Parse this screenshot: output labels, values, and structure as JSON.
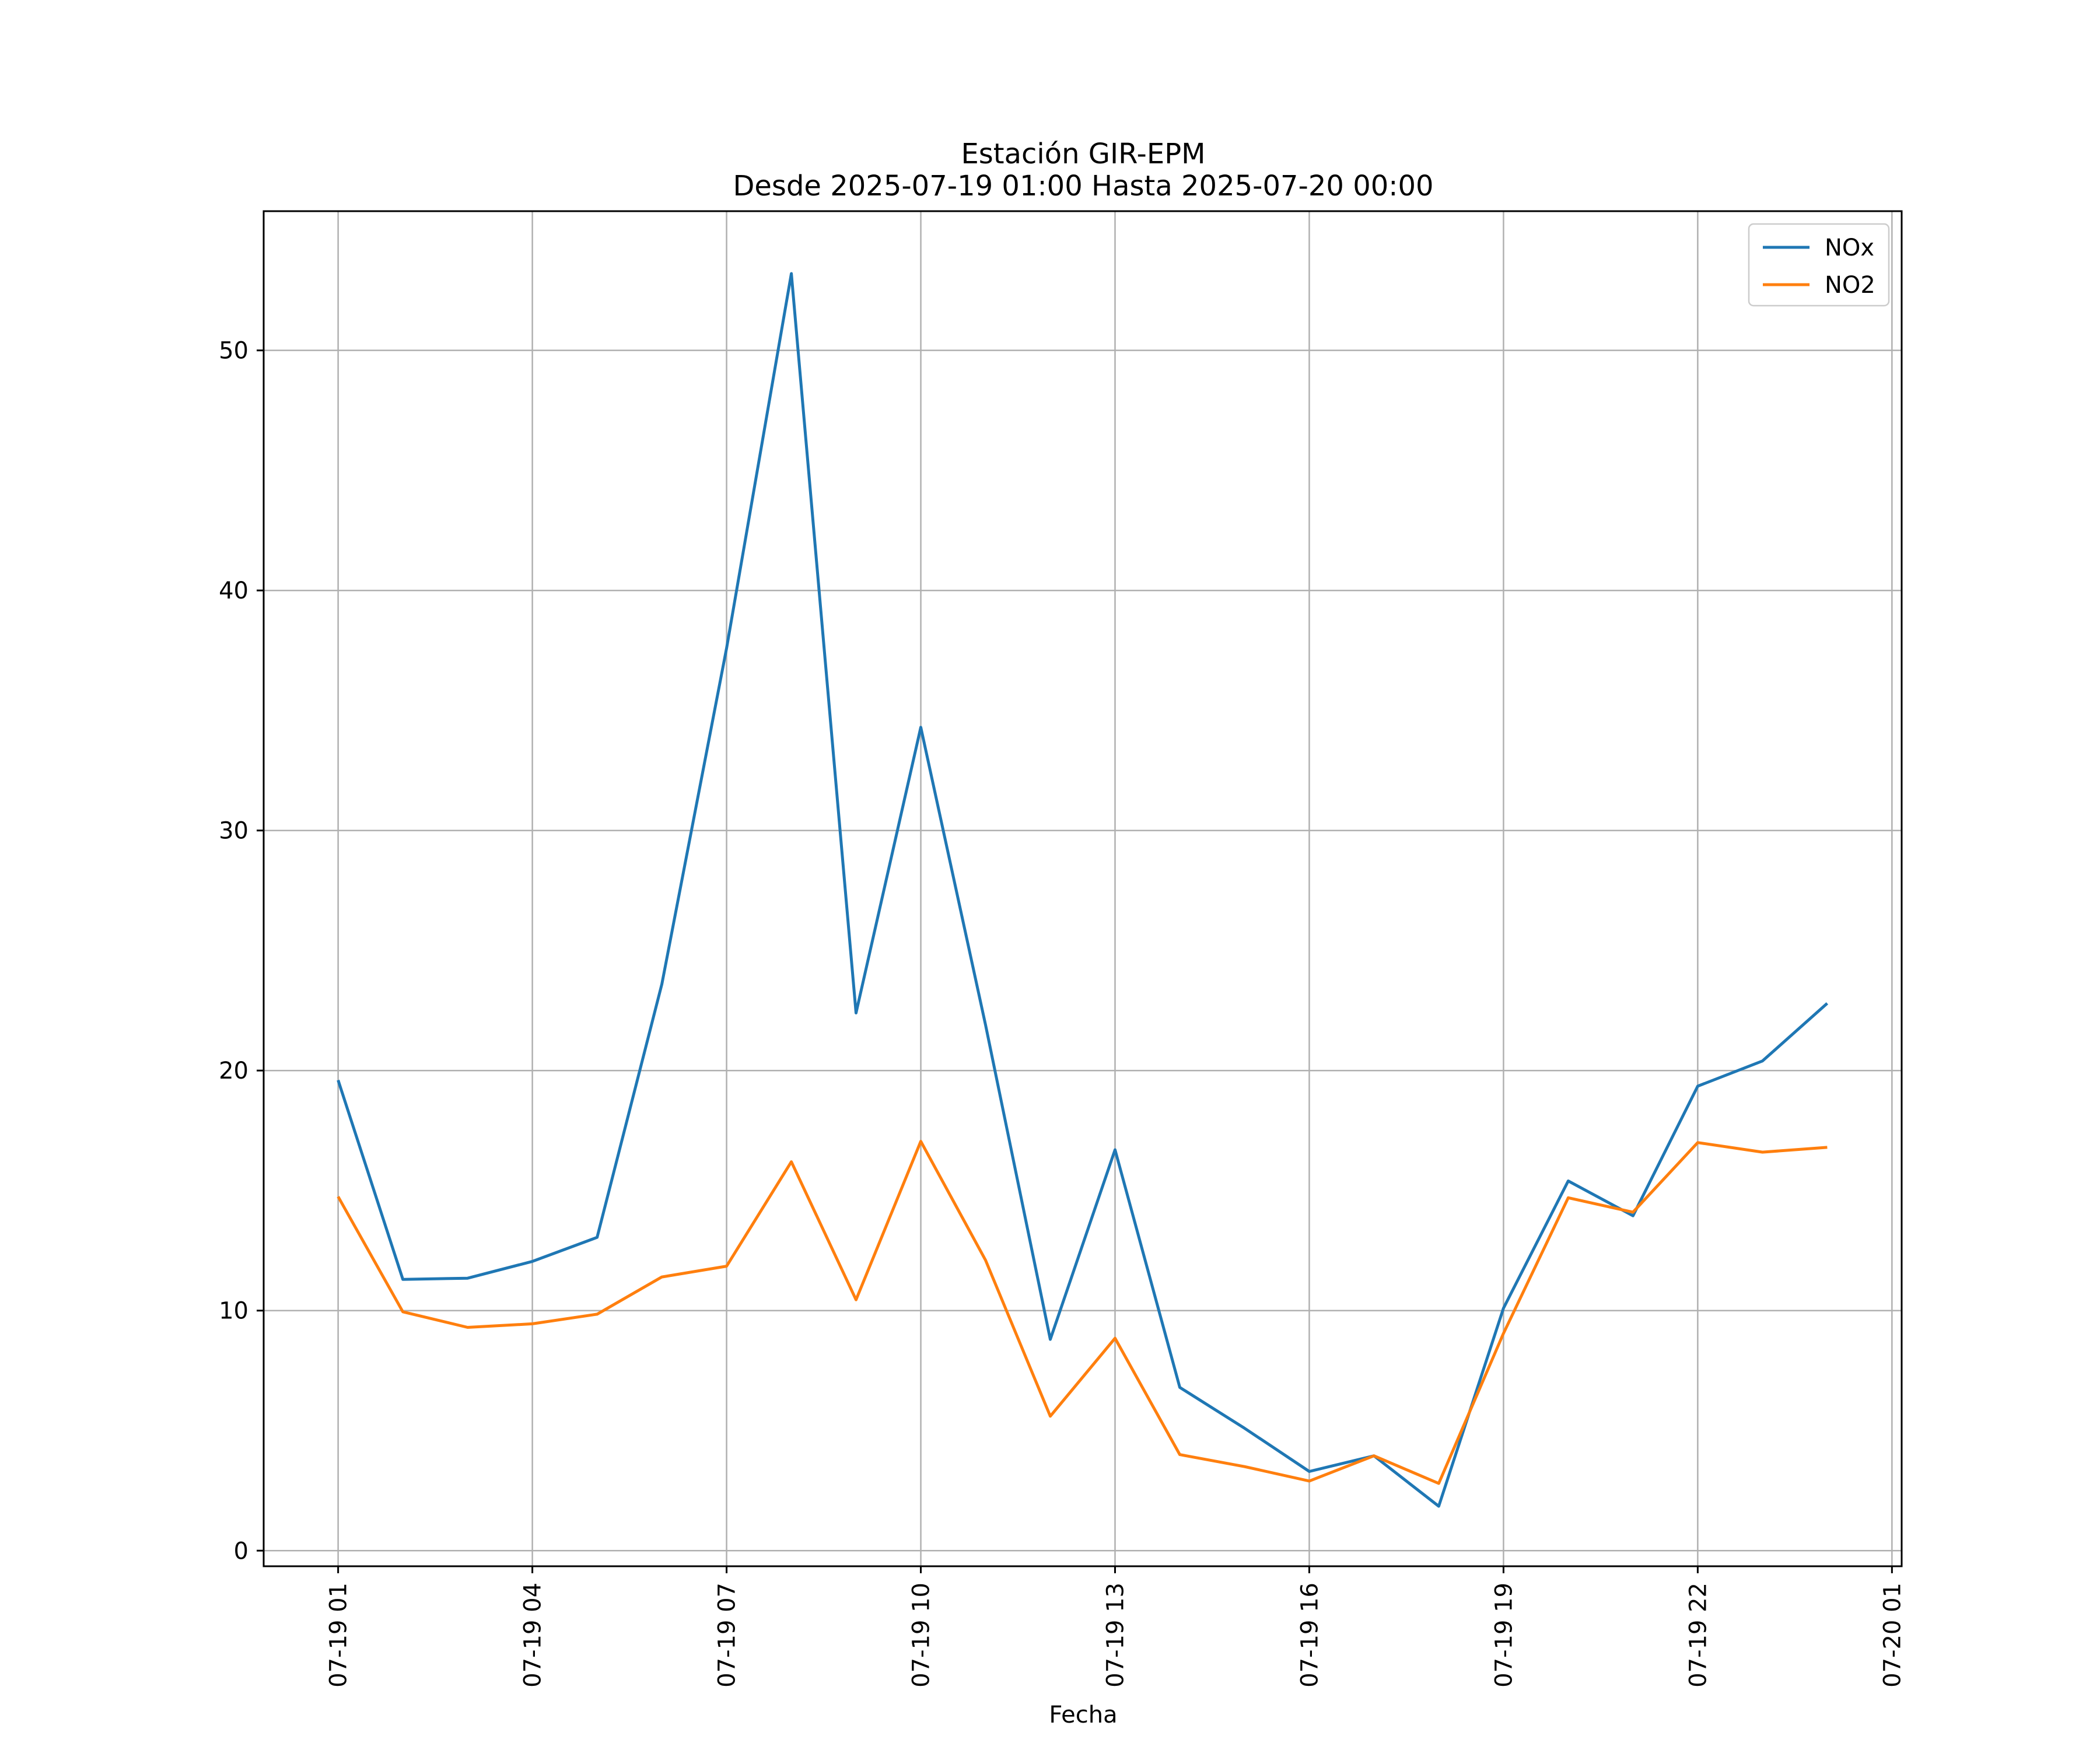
{
  "chart_data": {
    "type": "line",
    "title": "Estación GIR-EPM",
    "subtitle": "Desde 2025-07-19 01:00 Hasta 2025-07-20 00:00",
    "xlabel": "Fecha",
    "ylabel": "",
    "x": [
      "2025-07-19 01:00",
      "2025-07-19 02:00",
      "2025-07-19 03:00",
      "2025-07-19 04:00",
      "2025-07-19 05:00",
      "2025-07-19 06:00",
      "2025-07-19 07:00",
      "2025-07-19 08:00",
      "2025-07-19 09:00",
      "2025-07-19 10:00",
      "2025-07-19 11:00",
      "2025-07-19 12:00",
      "2025-07-19 13:00",
      "2025-07-19 14:00",
      "2025-07-19 15:00",
      "2025-07-19 16:00",
      "2025-07-19 17:00",
      "2025-07-19 18:00",
      "2025-07-19 19:00",
      "2025-07-19 20:00",
      "2025-07-19 21:00",
      "2025-07-19 22:00",
      "2025-07-19 23:00",
      "2025-07-20 00:00"
    ],
    "x_ticks": [
      "07-19 01",
      "07-19 04",
      "07-19 07",
      "07-19 10",
      "07-19 13",
      "07-19 16",
      "07-19 19",
      "07-19 22",
      "07-20 01"
    ],
    "x_ticks_hours": [
      0,
      3,
      6,
      9,
      12,
      15,
      18,
      21,
      24
    ],
    "xlim_hours": [
      -1.15,
      24.15
    ],
    "y_ticks": [
      0,
      10,
      20,
      30,
      40,
      50
    ],
    "ylim": [
      -0.65,
      55.8
    ],
    "grid": true,
    "legend_position": "top-right",
    "series": [
      {
        "name": "NOx",
        "color": "#1f77b4",
        "values": [
          19.6,
          11.3,
          11.35,
          12.05,
          13.05,
          23.6,
          37.6,
          53.2,
          22.4,
          34.3,
          21.9,
          8.8,
          16.7,
          6.8,
          5.1,
          3.3,
          3.95,
          1.85,
          10.1,
          15.4,
          13.95,
          19.35,
          20.4,
          22.8
        ]
      },
      {
        "name": "NO2",
        "color": "#ff7f0e",
        "values": [
          14.75,
          9.95,
          9.3,
          9.45,
          9.85,
          11.4,
          11.85,
          16.2,
          10.45,
          17.05,
          12.1,
          5.6,
          8.85,
          4.0,
          3.5,
          2.9,
          3.95,
          2.8,
          9.05,
          14.7,
          14.1,
          17.0,
          16.6,
          16.8
        ]
      }
    ]
  }
}
